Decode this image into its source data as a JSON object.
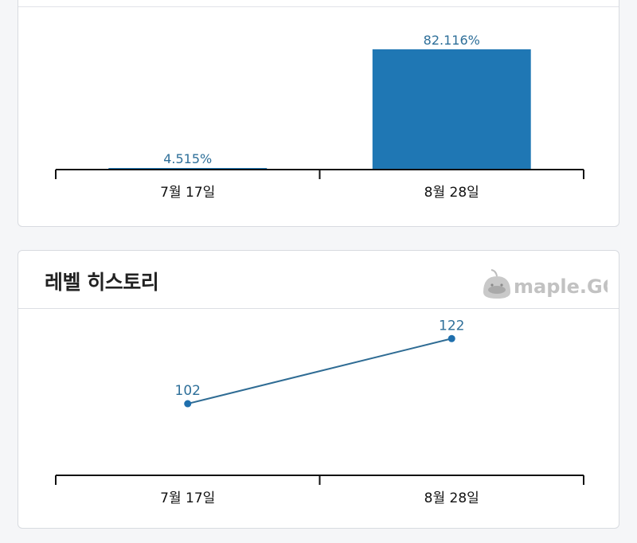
{
  "sections": {
    "level_history": {
      "title": "레벨 히스토리"
    }
  },
  "watermark": {
    "logo_text": "maple.GG"
  },
  "colors": {
    "bar": "#1f77b4",
    "line": "#2f6c94",
    "point": "#1f6fad",
    "label": "#2e6f99",
    "axis": "#111111"
  },
  "chart_data": [
    {
      "type": "bar",
      "categories": [
        "7월 17일",
        "8월 28일"
      ],
      "values": [
        4.515,
        82.116
      ],
      "data_labels": [
        "4.515%",
        "82.116%"
      ],
      "ylim": [
        0,
        100
      ],
      "grid": false
    },
    {
      "type": "line",
      "categories": [
        "7월 17일",
        "8월 28일"
      ],
      "values": [
        102,
        122
      ],
      "data_labels": [
        "102",
        "122"
      ],
      "ylim": [
        80,
        125
      ],
      "grid": false
    }
  ]
}
